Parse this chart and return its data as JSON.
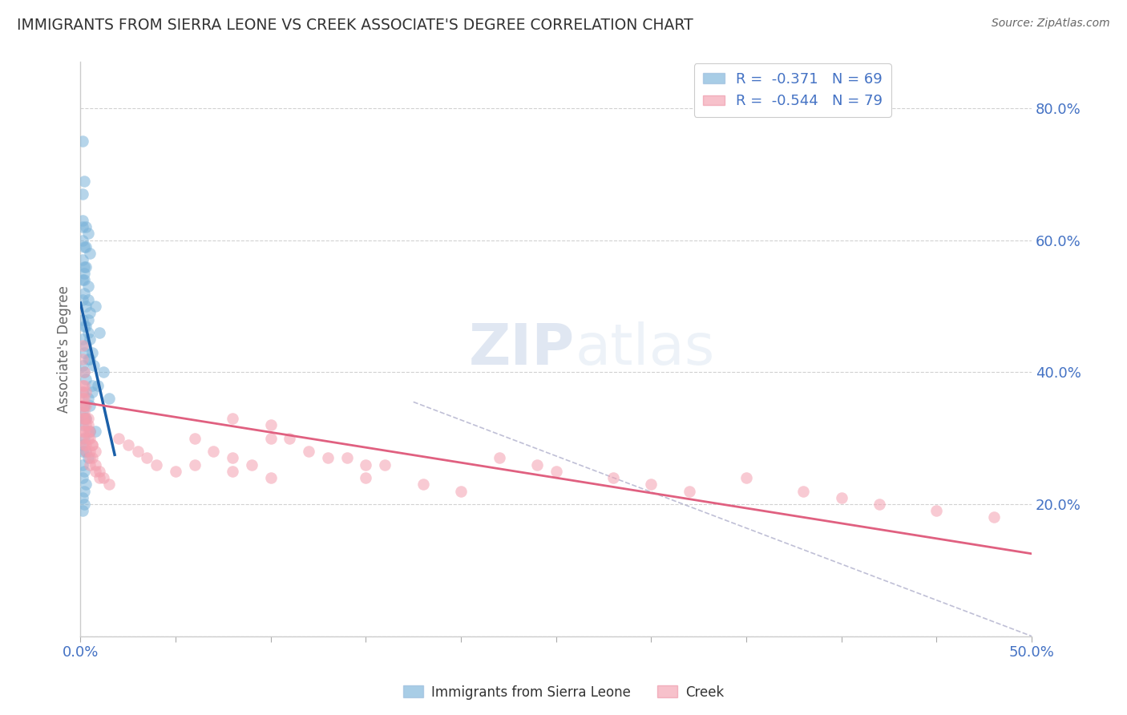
{
  "title": "IMMIGRANTS FROM SIERRA LEONE VS CREEK ASSOCIATE'S DEGREE CORRELATION CHART",
  "source": "Source: ZipAtlas.com",
  "ylabel": "Associate's Degree",
  "y_ticks": [
    0.0,
    0.2,
    0.4,
    0.6,
    0.8
  ],
  "y_tick_labels": [
    "",
    "20.0%",
    "40.0%",
    "60.0%",
    "80.0%"
  ],
  "x_lim": [
    0.0,
    0.5
  ],
  "y_lim": [
    0.0,
    0.87
  ],
  "legend_entries": [
    {
      "label": "R =  -0.371   N = 69",
      "color": "#6baed6"
    },
    {
      "label": "R =  -0.544   N = 79",
      "color": "#f08080"
    }
  ],
  "legend_bottom": [
    {
      "label": "Immigrants from Sierra Leone",
      "color": "#a8c8e8"
    },
    {
      "label": "Creek",
      "color": "#f9b4c0"
    }
  ],
  "blue_scatter": [
    [
      0.001,
      0.75
    ],
    [
      0.002,
      0.69
    ],
    [
      0.001,
      0.67
    ],
    [
      0.001,
      0.63
    ],
    [
      0.003,
      0.62
    ],
    [
      0.004,
      0.61
    ],
    [
      0.001,
      0.6
    ],
    [
      0.002,
      0.59
    ],
    [
      0.005,
      0.58
    ],
    [
      0.001,
      0.57
    ],
    [
      0.003,
      0.56
    ],
    [
      0.002,
      0.55
    ],
    [
      0.001,
      0.54
    ],
    [
      0.004,
      0.53
    ],
    [
      0.002,
      0.52
    ],
    [
      0.001,
      0.51
    ],
    [
      0.003,
      0.5
    ],
    [
      0.005,
      0.49
    ],
    [
      0.001,
      0.48
    ],
    [
      0.002,
      0.47
    ],
    [
      0.004,
      0.46
    ],
    [
      0.001,
      0.45
    ],
    [
      0.003,
      0.44
    ],
    [
      0.002,
      0.43
    ],
    [
      0.005,
      0.42
    ],
    [
      0.001,
      0.41
    ],
    [
      0.002,
      0.4
    ],
    [
      0.003,
      0.39
    ],
    [
      0.006,
      0.38
    ],
    [
      0.001,
      0.37
    ],
    [
      0.004,
      0.36
    ],
    [
      0.002,
      0.35
    ],
    [
      0.001,
      0.34
    ],
    [
      0.003,
      0.33
    ],
    [
      0.001,
      0.32
    ],
    [
      0.005,
      0.31
    ],
    [
      0.002,
      0.3
    ],
    [
      0.001,
      0.29
    ],
    [
      0.003,
      0.28
    ],
    [
      0.004,
      0.27
    ],
    [
      0.001,
      0.26
    ],
    [
      0.002,
      0.25
    ],
    [
      0.001,
      0.24
    ],
    [
      0.003,
      0.23
    ],
    [
      0.008,
      0.5
    ],
    [
      0.01,
      0.46
    ],
    [
      0.012,
      0.4
    ],
    [
      0.015,
      0.36
    ],
    [
      0.001,
      0.21
    ],
    [
      0.002,
      0.2
    ],
    [
      0.004,
      0.48
    ],
    [
      0.006,
      0.43
    ],
    [
      0.007,
      0.41
    ],
    [
      0.009,
      0.38
    ],
    [
      0.002,
      0.56
    ],
    [
      0.003,
      0.59
    ],
    [
      0.001,
      0.62
    ],
    [
      0.004,
      0.51
    ],
    [
      0.005,
      0.45
    ],
    [
      0.006,
      0.37
    ],
    [
      0.008,
      0.31
    ],
    [
      0.002,
      0.33
    ],
    [
      0.001,
      0.28
    ],
    [
      0.003,
      0.47
    ],
    [
      0.002,
      0.54
    ],
    [
      0.004,
      0.42
    ],
    [
      0.001,
      0.19
    ],
    [
      0.002,
      0.22
    ],
    [
      0.005,
      0.35
    ]
  ],
  "pink_scatter": [
    [
      0.001,
      0.44
    ],
    [
      0.002,
      0.4
    ],
    [
      0.003,
      0.37
    ],
    [
      0.001,
      0.35
    ],
    [
      0.002,
      0.33
    ],
    [
      0.004,
      0.31
    ],
    [
      0.001,
      0.42
    ],
    [
      0.002,
      0.38
    ],
    [
      0.003,
      0.35
    ],
    [
      0.004,
      0.32
    ],
    [
      0.005,
      0.3
    ],
    [
      0.006,
      0.29
    ],
    [
      0.001,
      0.38
    ],
    [
      0.002,
      0.36
    ],
    [
      0.003,
      0.33
    ],
    [
      0.005,
      0.31
    ],
    [
      0.006,
      0.29
    ],
    [
      0.008,
      0.28
    ],
    [
      0.001,
      0.37
    ],
    [
      0.002,
      0.35
    ],
    [
      0.004,
      0.33
    ],
    [
      0.001,
      0.36
    ],
    [
      0.002,
      0.34
    ],
    [
      0.003,
      0.32
    ],
    [
      0.004,
      0.3
    ],
    [
      0.005,
      0.28
    ],
    [
      0.006,
      0.27
    ],
    [
      0.008,
      0.26
    ],
    [
      0.01,
      0.25
    ],
    [
      0.012,
      0.24
    ],
    [
      0.015,
      0.23
    ],
    [
      0.001,
      0.31
    ],
    [
      0.002,
      0.29
    ],
    [
      0.005,
      0.27
    ],
    [
      0.008,
      0.25
    ],
    [
      0.01,
      0.24
    ],
    [
      0.001,
      0.33
    ],
    [
      0.002,
      0.31
    ],
    [
      0.003,
      0.29
    ],
    [
      0.001,
      0.3
    ],
    [
      0.003,
      0.28
    ],
    [
      0.005,
      0.26
    ],
    [
      0.02,
      0.3
    ],
    [
      0.025,
      0.29
    ],
    [
      0.03,
      0.28
    ],
    [
      0.035,
      0.27
    ],
    [
      0.04,
      0.26
    ],
    [
      0.05,
      0.25
    ],
    [
      0.06,
      0.3
    ],
    [
      0.07,
      0.28
    ],
    [
      0.08,
      0.27
    ],
    [
      0.09,
      0.26
    ],
    [
      0.1,
      0.3
    ],
    [
      0.06,
      0.26
    ],
    [
      0.08,
      0.25
    ],
    [
      0.1,
      0.24
    ],
    [
      0.12,
      0.28
    ],
    [
      0.14,
      0.27
    ],
    [
      0.16,
      0.26
    ],
    [
      0.08,
      0.33
    ],
    [
      0.1,
      0.32
    ],
    [
      0.11,
      0.3
    ],
    [
      0.13,
      0.27
    ],
    [
      0.15,
      0.26
    ],
    [
      0.15,
      0.24
    ],
    [
      0.18,
      0.23
    ],
    [
      0.2,
      0.22
    ],
    [
      0.22,
      0.27
    ],
    [
      0.24,
      0.26
    ],
    [
      0.25,
      0.25
    ],
    [
      0.28,
      0.24
    ],
    [
      0.3,
      0.23
    ],
    [
      0.32,
      0.22
    ],
    [
      0.35,
      0.24
    ],
    [
      0.38,
      0.22
    ],
    [
      0.4,
      0.21
    ],
    [
      0.42,
      0.2
    ],
    [
      0.45,
      0.19
    ],
    [
      0.48,
      0.18
    ]
  ],
  "blue_trend": {
    "x_start": 0.0,
    "y_start": 0.505,
    "x_end": 0.018,
    "y_end": 0.275
  },
  "pink_trend": {
    "x_start": 0.0,
    "y_start": 0.355,
    "x_end": 0.5,
    "y_end": 0.125
  },
  "diag_line": {
    "x_start": 0.175,
    "y_start": 0.355,
    "x_end": 0.5,
    "y_end": 0.0
  },
  "watermark_zip": "ZIP",
  "watermark_atlas": "atlas",
  "bg_color": "#ffffff",
  "grid_color": "#cccccc",
  "title_color": "#333333",
  "axis_label_color": "#4472c4",
  "scatter_blue_color": "#7ab3d9",
  "scatter_pink_color": "#f4a0b0",
  "trend_blue_color": "#1a5fa8",
  "trend_pink_color": "#e06080",
  "diag_color": "#b0b0cc"
}
